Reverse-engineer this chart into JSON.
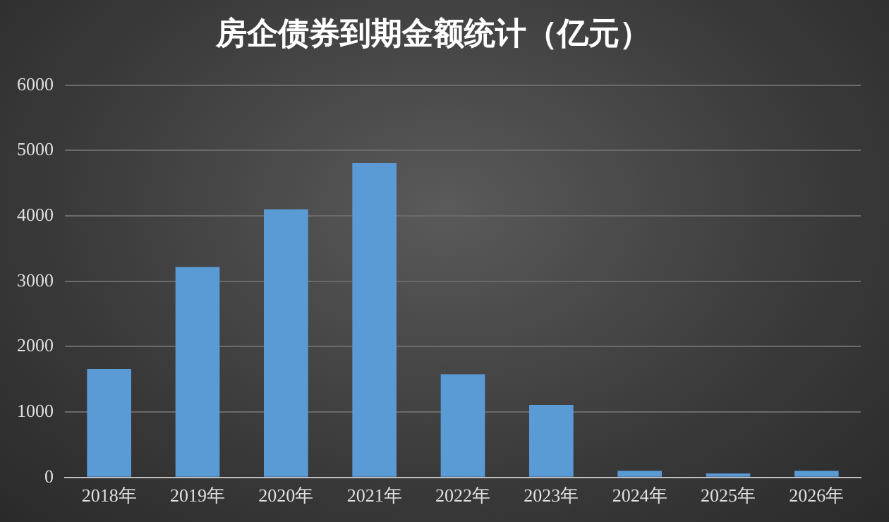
{
  "chart_data": {
    "type": "bar",
    "title": "房企债券到期金额统计（亿元）",
    "categories": [
      "2018年",
      "2019年",
      "2020年",
      "2021年",
      "2022年",
      "2023年",
      "2024年",
      "2025年",
      "2026年"
    ],
    "values": [
      1660,
      3220,
      4100,
      4810,
      1580,
      1110,
      100,
      60,
      100
    ],
    "color": "#5b9bd5",
    "ylim": [
      0,
      6000
    ],
    "yticks": [
      0,
      1000,
      2000,
      3000,
      4000,
      5000,
      6000
    ],
    "grid": "y"
  }
}
